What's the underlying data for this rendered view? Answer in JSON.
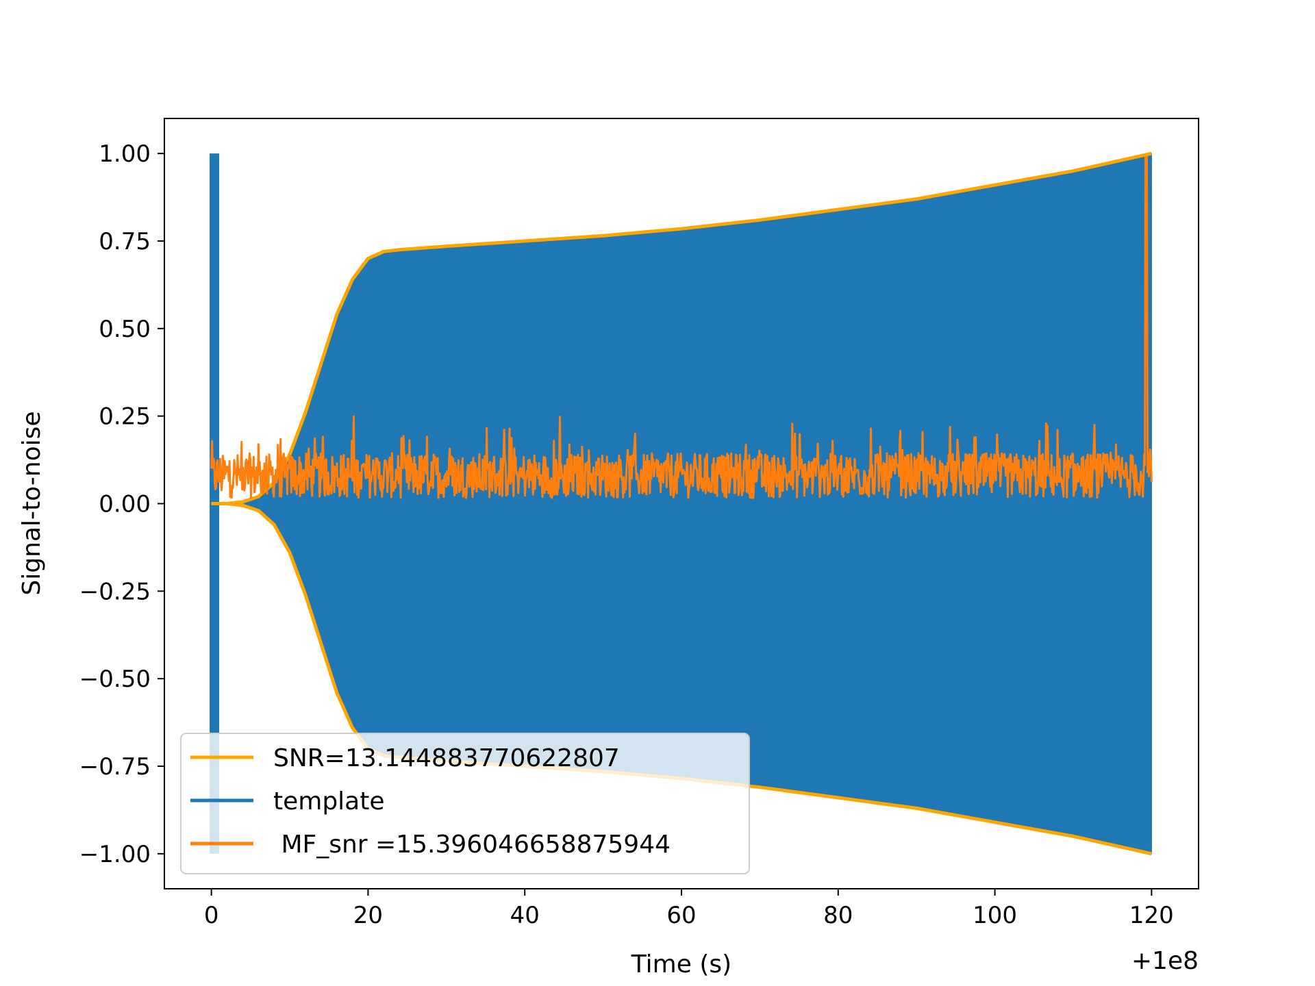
{
  "chart_data": {
    "type": "line",
    "xlabel": "Time (s)",
    "ylabel": "Signal-to-noise",
    "x_offset_label": "+1e8",
    "xlim": [
      -6,
      126
    ],
    "ylim": [
      -1.1,
      1.1
    ],
    "x_ticks": [
      0,
      20,
      40,
      60,
      80,
      100,
      120
    ],
    "y_ticks": [
      1.0,
      0.75,
      0.5,
      0.25,
      0.0,
      -0.25,
      -0.5,
      -0.75,
      -1.0
    ],
    "x_tick_labels": [
      "0",
      "20",
      "40",
      "60",
      "80",
      "100",
      "120"
    ],
    "y_tick_labels": [
      "1.00",
      "0.75",
      "0.50",
      "0.25",
      "0.00",
      "−0.25",
      "−0.50",
      "−0.75",
      "−1.00"
    ],
    "legend_position": "lower left",
    "series": [
      {
        "name": "SNR=13.144883770622807",
        "color": "#ffa500",
        "kind": "envelope",
        "x": [
          0,
          2,
          4,
          6,
          8,
          10,
          12,
          14,
          16,
          18,
          20,
          22,
          24,
          30,
          40,
          50,
          60,
          70,
          80,
          90,
          100,
          110,
          120
        ],
        "upper": [
          0.0,
          0.0,
          0.005,
          0.02,
          0.06,
          0.14,
          0.26,
          0.4,
          0.54,
          0.64,
          0.7,
          0.72,
          0.725,
          0.735,
          0.75,
          0.765,
          0.785,
          0.81,
          0.84,
          0.87,
          0.91,
          0.95,
          1.0
        ],
        "lower": [
          0.0,
          0.0,
          -0.005,
          -0.02,
          -0.06,
          -0.14,
          -0.26,
          -0.4,
          -0.54,
          -0.64,
          -0.7,
          -0.72,
          -0.725,
          -0.735,
          -0.75,
          -0.765,
          -0.785,
          -0.81,
          -0.84,
          -0.87,
          -0.91,
          -0.95,
          -1.0
        ]
      },
      {
        "name": "template",
        "color": "#1f77b4",
        "kind": "filled-oscillation",
        "spike_x": 0.3,
        "spike_range": [
          -1.0,
          1.0
        ]
      },
      {
        "name": " MF_snr =15.396046658875944",
        "color": "#ff7f0e",
        "kind": "noise",
        "x_range": [
          0,
          120
        ],
        "baseline": 0.08,
        "spread": 0.08,
        "peak_x": 119.3,
        "peak_value": 0.99
      }
    ]
  }
}
